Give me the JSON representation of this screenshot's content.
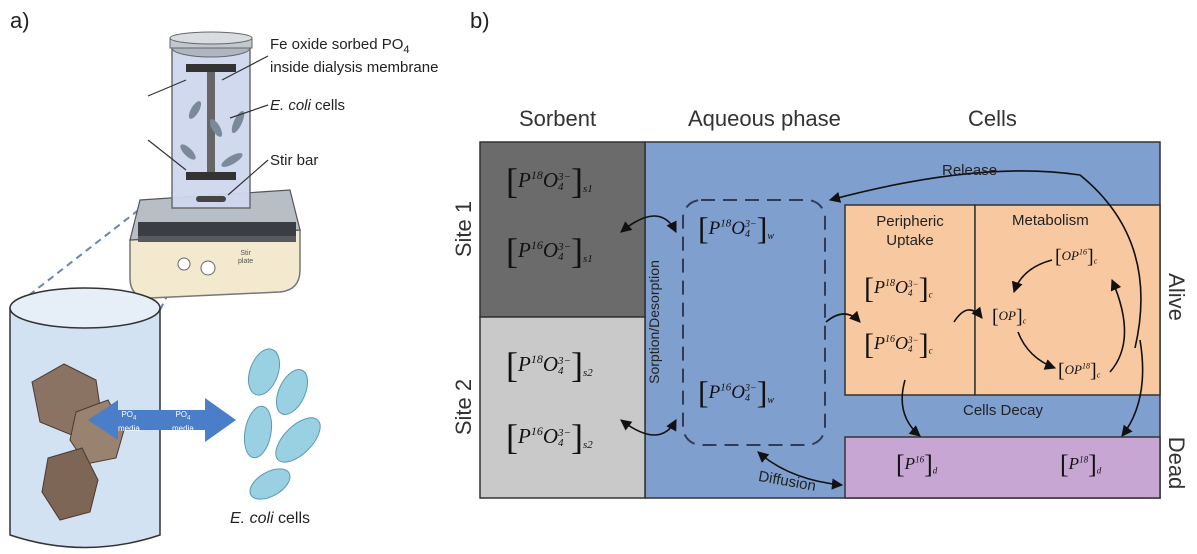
{
  "panel_a": {
    "label": "a)",
    "callout_membrane_line1": "Fe oxide sorbed PO",
    "callout_membrane_sub": "4",
    "callout_membrane_line2": "inside dialysis membrane",
    "callout_cells_italic": "E. coli",
    "callout_cells_rest": " cells",
    "callout_stir": "Stir bar",
    "stirrer_text_line1": "Stir",
    "stirrer_text_line2": "plate",
    "arrow_left_line1": "PO",
    "arrow_left_sub": "4",
    "arrow_left_line2": "media",
    "arrow_right_line1": "PO",
    "arrow_right_sub": "4",
    "arrow_right_line2": "media",
    "bottom_cells_italic": "E. coli",
    "bottom_cells_rest": " cells"
  },
  "panel_b": {
    "label": "b)",
    "headers": {
      "sorbent": "Sorbent",
      "aqueous": "Aqueous phase",
      "cells": "Cells"
    },
    "side_labels": {
      "site1": "Site 1",
      "site2": "Site 2",
      "alive": "Alive",
      "dead": "Dead"
    },
    "process_labels": {
      "sorption": "Sorption/Desorption",
      "release": "Release",
      "cells_decay": "Cells Decay",
      "diffusion": "Diffusion",
      "peripheric_line1": "Peripheric",
      "peripheric_line2": "Uptake",
      "metabolism": "Metabolism"
    },
    "formulas": {
      "s1_18": {
        "iso": "18",
        "base": "P",
        "o": "O",
        "sub4": "4",
        "charge": "3−",
        "phase": "s1"
      },
      "s1_16": {
        "iso": "16",
        "base": "P",
        "o": "O",
        "sub4": "4",
        "charge": "3−",
        "phase": "s1"
      },
      "s2_18": {
        "iso": "18",
        "base": "P",
        "o": "O",
        "sub4": "4",
        "charge": "3−",
        "phase": "s2"
      },
      "s2_16": {
        "iso": "16",
        "base": "P",
        "o": "O",
        "sub4": "4",
        "charge": "3−",
        "phase": "s2"
      },
      "w_18": {
        "iso": "18",
        "base": "P",
        "o": "O",
        "sub4": "4",
        "charge": "3−",
        "phase": "w"
      },
      "w_16": {
        "iso": "16",
        "base": "P",
        "o": "O",
        "sub4": "4",
        "charge": "3−",
        "phase": "w"
      },
      "p_18": {
        "iso": "18",
        "base": "P",
        "o": "O",
        "sub4": "4",
        "charge": "3−",
        "phase": "c"
      },
      "p_16": {
        "iso": "16",
        "base": "P",
        "o": "O",
        "sub4": "4",
        "charge": "3−",
        "phase": "c"
      },
      "m_op16": {
        "iso": "16",
        "base": "OP",
        "phase": "c"
      },
      "m_op": {
        "base": "OP",
        "phase": "c"
      },
      "m_op18": {
        "iso": "18",
        "base": "OP",
        "phase": "c"
      },
      "d_16": {
        "iso": "16",
        "base": "P",
        "phase": "d"
      },
      "d_18": {
        "iso": "18",
        "base": "P",
        "phase": "d"
      }
    }
  },
  "colors": {
    "sorbent_site1": "#6b6b6b",
    "sorbent_site2": "#c9c9c9",
    "aqueous": "#7f9fcf",
    "alive_cells": "#f8c9a0",
    "dead_cells": "#c8a6d4",
    "arrow_blue": "#4a7ec8"
  }
}
